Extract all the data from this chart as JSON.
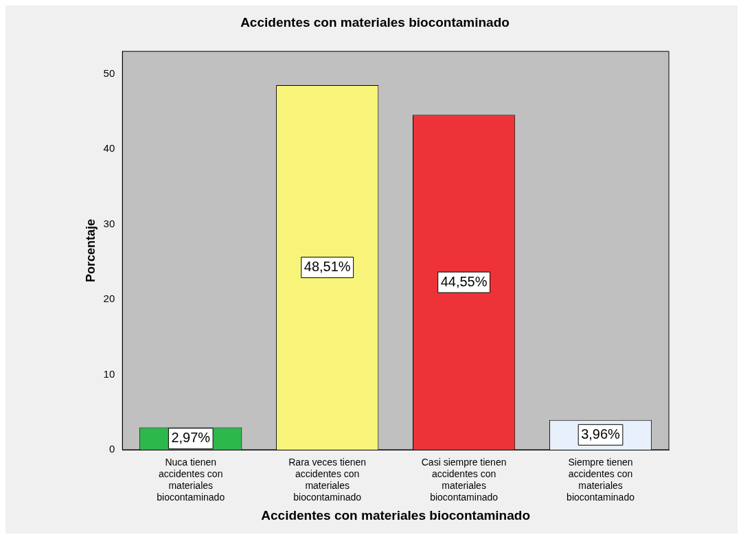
{
  "chart_data": {
    "type": "bar",
    "title": "Accidentes con materiales biocontaminado",
    "xlabel": "Accidentes con materiales biocontaminado",
    "ylabel": "Porcentaje",
    "categories": [
      "Nuca tienen accidentes con materiales biocontaminado",
      "Rara veces tienen accidentes con materiales biocontaminado",
      "Casi siempre tienen accidentes con materiales biocontaminado",
      "Siempre tienen accidentes con materiales biocontaminado"
    ],
    "values": [
      2.97,
      48.51,
      44.55,
      3.96
    ],
    "colors": [
      "#2db84b",
      "#f8f47a",
      "#ee3338",
      "#e8f0fc"
    ],
    "value_labels": [
      "2,97%",
      "48,51%",
      "44,55%",
      "3,96%"
    ],
    "ylim": [
      0,
      53
    ],
    "yticks": [
      0,
      10,
      20,
      30,
      40,
      50
    ],
    "grid": false,
    "legend": false
  }
}
